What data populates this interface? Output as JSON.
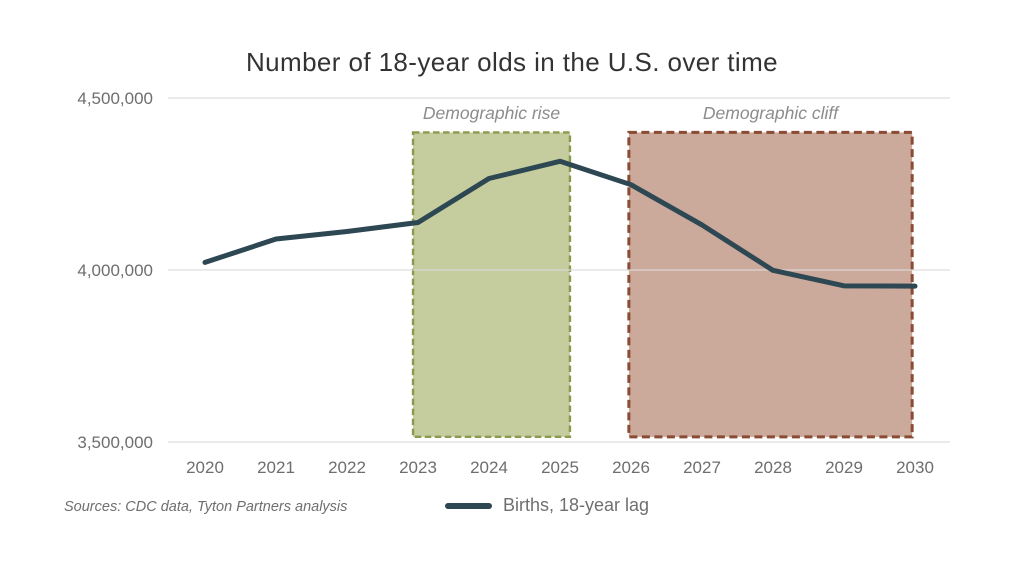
{
  "title": "Number of 18-year olds in the U.S. over time",
  "source_note": "Sources: CDC data, Tyton Partners analysis",
  "legend": {
    "label": "Births, 18-year lag"
  },
  "colors": {
    "line": "#2d4753",
    "grid": "#dcdcdc",
    "tick_text": "#6e6e6e"
  },
  "chart_data": {
    "type": "line",
    "title": "Number of 18-year olds in the U.S. over time",
    "x": [
      2020,
      2021,
      2022,
      2023,
      2024,
      2025,
      2026,
      2027,
      2028,
      2029,
      2030
    ],
    "series": [
      {
        "name": "Births, 18-year lag",
        "color": "#2d4753",
        "values": [
          4022000,
          4090000,
          4112000,
          4138000,
          4266000,
          4316000,
          4248000,
          4131000,
          3999000,
          3954000,
          3953000
        ]
      }
    ],
    "xlabel": "",
    "ylabel": "",
    "ylim": [
      3500000,
      4500000
    ],
    "yticks": [
      3500000,
      4000000,
      4500000
    ],
    "ytick_labels": [
      "3,500,000",
      "4,000,000",
      "4,500,000"
    ],
    "grid": "horizontal",
    "legend_position": "bottom-center",
    "regions": [
      {
        "label": "Demographic rise",
        "x_start": 2022.93,
        "x_end": 2025.14,
        "y_top": 4400000,
        "y_bottom": 3515000,
        "fill": "#c5cc9e",
        "border": "#8a9a4d",
        "border_width": 2.4,
        "dash": "6.5 3.5"
      },
      {
        "label": "Demographic cliff",
        "x_start": 2025.97,
        "x_end": 2029.96,
        "y_top": 4400000,
        "y_bottom": 3515000,
        "fill": "#cba99b",
        "border": "#8a4a33",
        "border_width": 3,
        "dash": "8 4.5"
      }
    ]
  }
}
